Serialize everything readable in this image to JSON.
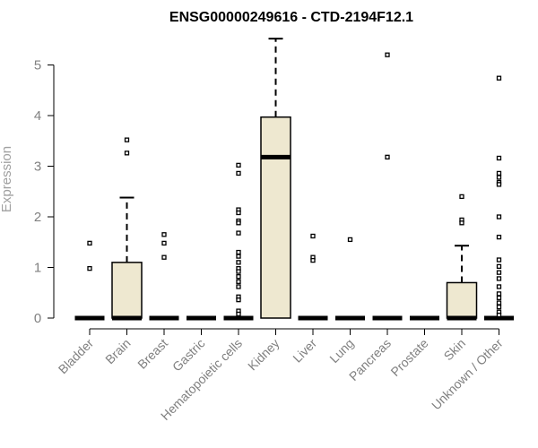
{
  "chart_data": {
    "type": "box",
    "title": "ENSG00000249616 - CTD-2194F12.1",
    "ylabel": "Expression",
    "xlabel": "",
    "ylim": [
      0,
      5.6
    ],
    "yticks": [
      "0",
      "1",
      "2",
      "3",
      "4",
      "5"
    ],
    "colors": {
      "box_fill": "#EEE8D0",
      "stroke": "#000000",
      "axis_text": "#808080"
    },
    "categories": [
      {
        "name": "Bladder",
        "q1": 0,
        "median": 0,
        "q3": 0,
        "whisker_low": 0,
        "whisker_high": 0,
        "outliers": [
          1.48,
          0.98
        ]
      },
      {
        "name": "Brain",
        "q1": 0,
        "median": 0,
        "q3": 1.1,
        "whisker_low": 0,
        "whisker_high": 2.38,
        "outliers": [
          3.52,
          3.26
        ]
      },
      {
        "name": "Breast",
        "q1": 0,
        "median": 0,
        "q3": 0,
        "whisker_low": 0,
        "whisker_high": 0,
        "outliers": [
          1.65,
          1.48,
          1.2
        ]
      },
      {
        "name": "Gastric",
        "q1": 0,
        "median": 0,
        "q3": 0,
        "whisker_low": 0,
        "whisker_high": 0,
        "outliers": []
      },
      {
        "name": "Hematopoietic cells",
        "q1": 0,
        "median": 0,
        "q3": 0,
        "whisker_low": 0,
        "whisker_high": 0,
        "outliers": [
          3.02,
          2.86,
          2.14,
          2.08,
          1.92,
          1.88,
          1.68,
          1.3,
          1.22,
          1.1,
          0.98,
          0.92,
          0.82,
          0.72,
          0.62,
          0.42,
          0.36,
          0.14,
          0.08
        ]
      },
      {
        "name": "Kidney",
        "q1": 0,
        "median": 3.18,
        "q3": 3.97,
        "whisker_low": 0,
        "whisker_high": 5.52,
        "outliers": []
      },
      {
        "name": "Liver",
        "q1": 0,
        "median": 0,
        "q3": 0,
        "whisker_low": 0,
        "whisker_high": 0,
        "outliers": [
          1.62,
          1.2,
          1.14
        ]
      },
      {
        "name": "Lung",
        "q1": 0,
        "median": 0,
        "q3": 0,
        "whisker_low": 0,
        "whisker_high": 0,
        "outliers": [
          1.55
        ]
      },
      {
        "name": "Pancreas",
        "q1": 0,
        "median": 0,
        "q3": 0,
        "whisker_low": 0,
        "whisker_high": 0,
        "outliers": [
          5.2,
          3.18
        ]
      },
      {
        "name": "Prostate",
        "q1": 0,
        "median": 0,
        "q3": 0,
        "whisker_low": 0,
        "whisker_high": 0,
        "outliers": []
      },
      {
        "name": "Skin",
        "q1": 0,
        "median": 0,
        "q3": 0.7,
        "whisker_low": 0,
        "whisker_high": 1.43,
        "outliers": [
          2.4,
          1.94,
          1.88
        ]
      },
      {
        "name": "Unknown / Other",
        "q1": 0,
        "median": 0,
        "q3": 0,
        "whisker_low": 0,
        "whisker_high": 0,
        "outliers": [
          4.74,
          3.16,
          2.86,
          2.78,
          2.68,
          2.64,
          2.0,
          1.6,
          1.15,
          1.02,
          0.9,
          0.78,
          0.62,
          0.48,
          0.4,
          0.3,
          0.22,
          0.12,
          0.06
        ]
      }
    ]
  }
}
